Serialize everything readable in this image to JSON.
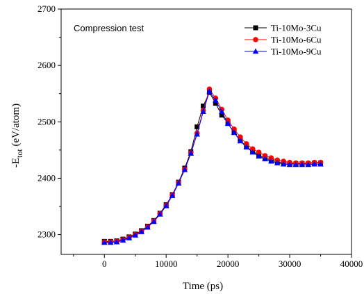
{
  "chart_data": {
    "type": "line",
    "annotation": "Compression test",
    "xlabel": "Time (ps)",
    "ylabel_main": "-E",
    "ylabel_sub": "tot",
    "ylabel_unit": " (eV/atom)",
    "xlim": [
      -7000,
      40000
    ],
    "ylim": [
      2265,
      2700
    ],
    "xticks": [
      0,
      10000,
      20000,
      30000,
      40000
    ],
    "xtick_labels": [
      "0",
      "10000",
      "20000",
      "30000",
      "40000"
    ],
    "yticks": [
      2300,
      2400,
      2500,
      2600,
      2700
    ],
    "ytick_labels": [
      "2300",
      "2400",
      "2500",
      "2600",
      "2700"
    ],
    "legend_position": "top-right",
    "x": [
      0,
      1000,
      2000,
      3000,
      4000,
      5000,
      6000,
      7000,
      8000,
      9000,
      10000,
      11000,
      12000,
      13000,
      14000,
      15000,
      16000,
      17000,
      18000,
      19000,
      20000,
      21000,
      22000,
      23000,
      24000,
      25000,
      26000,
      27000,
      28000,
      29000,
      30000,
      31000,
      32000,
      33000,
      34000,
      35000
    ],
    "series": [
      {
        "name": "Ti-10Mo-3Cu",
        "color": "#000000",
        "marker": "square",
        "values": [
          2288,
          2288,
          2289,
          2292,
          2296,
          2301,
          2307,
          2315,
          2325,
          2338,
          2353,
          2371,
          2393,
          2418,
          2447,
          2491,
          2528,
          2552,
          2533,
          2512,
          2497,
          2481,
          2467,
          2456,
          2448,
          2441,
          2436,
          2432,
          2429,
          2427,
          2426,
          2426,
          2426,
          2426,
          2427,
          2427
        ]
      },
      {
        "name": "Ti-10Mo-6Cu",
        "color": "#ff0000",
        "marker": "circle",
        "values": [
          2287,
          2287,
          2288,
          2291,
          2295,
          2300,
          2306,
          2314,
          2324,
          2337,
          2352,
          2370,
          2392,
          2416,
          2445,
          2480,
          2520,
          2558,
          2542,
          2522,
          2503,
          2487,
          2473,
          2461,
          2452,
          2446,
          2440,
          2436,
          2432,
          2430,
          2428,
          2427,
          2427,
          2427,
          2428,
          2428
        ]
      },
      {
        "name": "Ti-10Mo-9Cu",
        "color": "#0000ff",
        "marker": "triangle",
        "values": [
          2286,
          2286,
          2287,
          2290,
          2294,
          2299,
          2305,
          2313,
          2323,
          2336,
          2351,
          2369,
          2391,
          2415,
          2444,
          2478,
          2518,
          2554,
          2538,
          2518,
          2497,
          2481,
          2466,
          2455,
          2446,
          2439,
          2434,
          2430,
          2427,
          2425,
          2424,
          2424,
          2424,
          2424,
          2425,
          2425
        ]
      }
    ]
  }
}
